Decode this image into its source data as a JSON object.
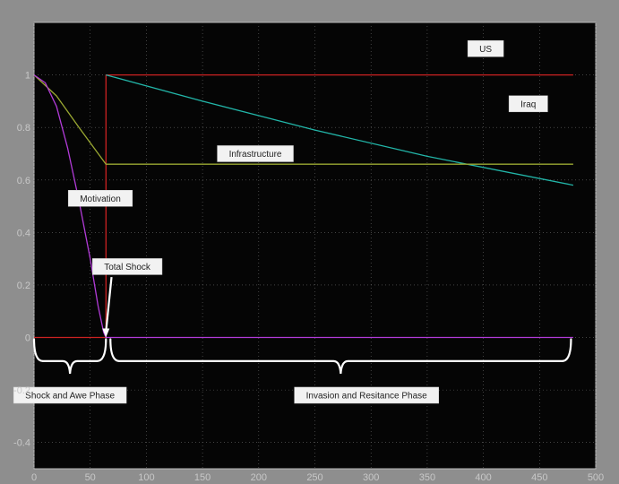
{
  "chart_data": {
    "type": "line",
    "xlim": [
      0,
      500
    ],
    "ylim": [
      -0.5,
      1.2
    ],
    "xticks": [
      0,
      50,
      100,
      150,
      200,
      250,
      300,
      350,
      400,
      450,
      500
    ],
    "yticks": [
      -0.4,
      -0.2,
      0,
      0.2,
      0.4,
      0.6,
      0.8,
      1
    ],
    "xtick_labels": [
      "0",
      "50",
      "100",
      "150",
      "200",
      "250",
      "300",
      "350",
      "400",
      "450",
      "500"
    ],
    "ytick_labels": [
      "-0.4",
      "-0.2",
      "0",
      "0.2",
      "0.4",
      "0.6",
      "0.8",
      "1"
    ],
    "grid": true,
    "series": [
      {
        "name": "US",
        "color": "#cc2222",
        "points": [
          [
            0,
            0
          ],
          [
            64,
            0
          ],
          [
            64,
            1
          ],
          [
            480,
            1
          ]
        ]
      },
      {
        "name": "Iraq",
        "color": "#22b5a8",
        "points": [
          [
            64,
            1
          ],
          [
            150,
            0.9
          ],
          [
            250,
            0.79
          ],
          [
            350,
            0.69
          ],
          [
            480,
            0.58
          ]
        ]
      },
      {
        "name": "Infrastructure",
        "color": "#9aa832",
        "points": [
          [
            0,
            1
          ],
          [
            20,
            0.92
          ],
          [
            40,
            0.8
          ],
          [
            64,
            0.66
          ],
          [
            480,
            0.66
          ]
        ]
      },
      {
        "name": "Motivation",
        "color": "#b23bd8",
        "points": [
          [
            0,
            1
          ],
          [
            10,
            0.97
          ],
          [
            20,
            0.88
          ],
          [
            30,
            0.72
          ],
          [
            40,
            0.52
          ],
          [
            50,
            0.3
          ],
          [
            57,
            0.12
          ],
          [
            62,
            0.02
          ],
          [
            64,
            0
          ],
          [
            480,
            0
          ]
        ]
      }
    ],
    "annotations": [
      {
        "text": "US",
        "x": 402,
        "y": 1.1
      },
      {
        "text": "Iraq",
        "x": 440,
        "y": 0.89
      },
      {
        "text": "Infrastructure",
        "x": 197,
        "y": 0.7
      },
      {
        "text": "Motivation",
        "x": 59,
        "y": 0.53
      },
      {
        "text": "Total Shock",
        "x": 83,
        "y": 0.27
      },
      {
        "text": "Shock and Awe Phase",
        "x": 32,
        "y": -0.22
      },
      {
        "text": "Invasion and Resitance Phase",
        "x": 296,
        "y": -0.22
      }
    ],
    "brackets": [
      {
        "from": 0,
        "to": 64,
        "y": -0.09
      },
      {
        "from": 68,
        "to": 478,
        "y": -0.09
      }
    ],
    "arrow": {
      "from": [
        69,
        0.23
      ],
      "to": [
        64,
        0.0
      ]
    }
  }
}
